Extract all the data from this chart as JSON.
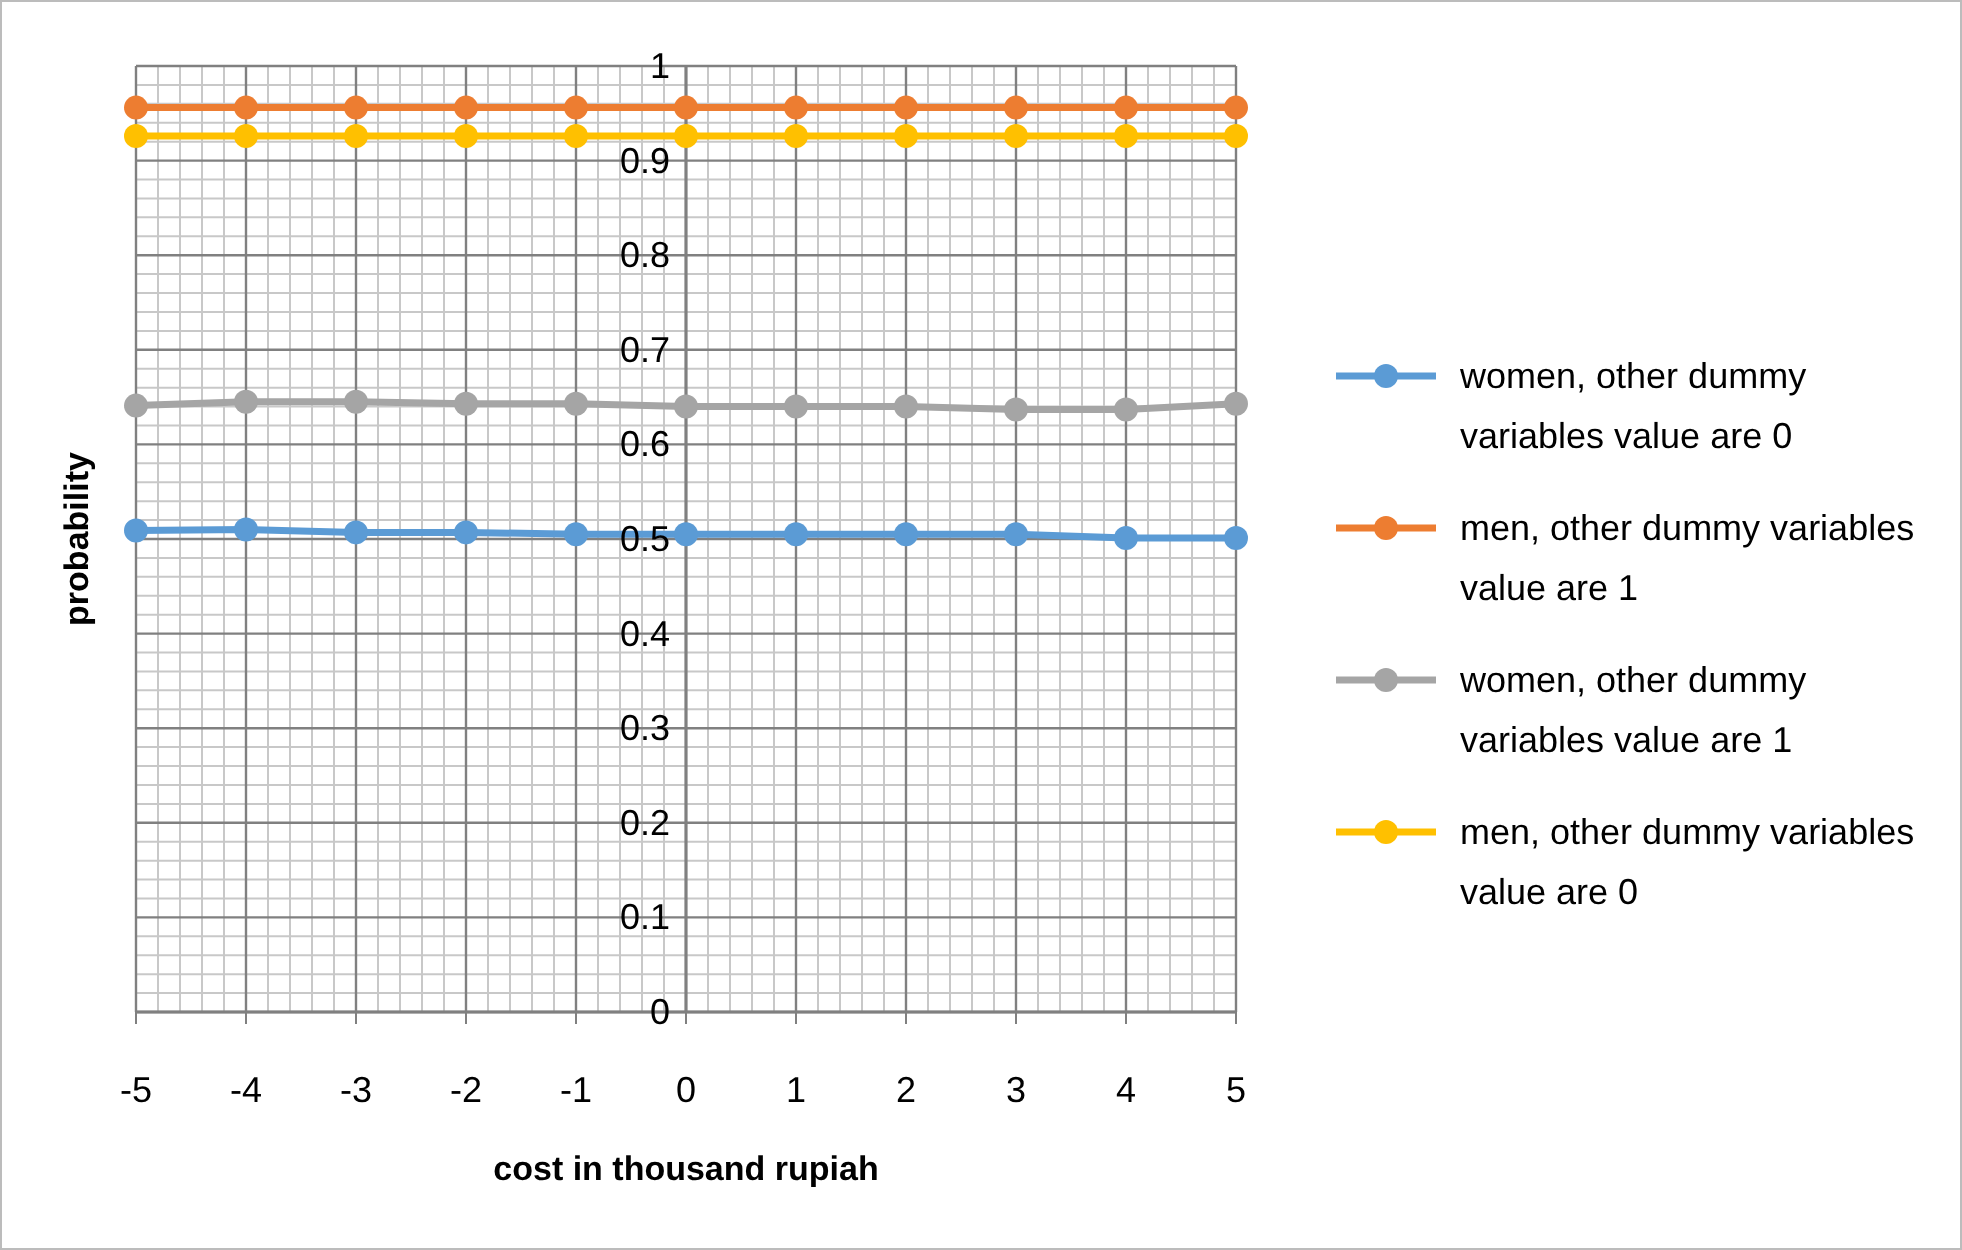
{
  "chart_data": {
    "type": "line",
    "xlabel": "cost in thousand rupiah",
    "ylabel": "probability",
    "x": [
      -5,
      -4,
      -3,
      -2,
      -1,
      0,
      1,
      2,
      3,
      4,
      5
    ],
    "series": [
      {
        "name": "women, other dummy variables value are 0",
        "color": "#5b9bd5",
        "values": [
          0.509,
          0.51,
          0.507,
          0.507,
          0.505,
          0.505,
          0.505,
          0.505,
          0.505,
          0.501,
          0.501
        ]
      },
      {
        "name": "men, other dummy variables value are 1",
        "color": "#ed7d31",
        "values": [
          0.956,
          0.956,
          0.956,
          0.956,
          0.956,
          0.956,
          0.956,
          0.956,
          0.956,
          0.956,
          0.956
        ]
      },
      {
        "name": "women, other dummy variables value are 1",
        "color": "#a5a5a5",
        "values": [
          0.641,
          0.645,
          0.645,
          0.643,
          0.643,
          0.64,
          0.64,
          0.64,
          0.637,
          0.637,
          0.643
        ]
      },
      {
        "name": "men, other dummy variables value are 0",
        "color": "#ffc000",
        "values": [
          0.926,
          0.926,
          0.926,
          0.926,
          0.926,
          0.926,
          0.926,
          0.926,
          0.926,
          0.926,
          0.926
        ]
      }
    ],
    "xlim": [
      -5,
      5
    ],
    "xticks": [
      -5,
      -4,
      -3,
      -2,
      -1,
      0,
      1,
      2,
      3,
      4,
      5
    ],
    "ylim": [
      0,
      1
    ],
    "yticks": [
      0,
      0.1,
      0.2,
      0.3,
      0.4,
      0.5,
      0.6,
      0.7,
      0.8,
      0.9,
      1
    ],
    "grid": true,
    "legend": "right",
    "marker": "circle",
    "line_style": "solid"
  }
}
